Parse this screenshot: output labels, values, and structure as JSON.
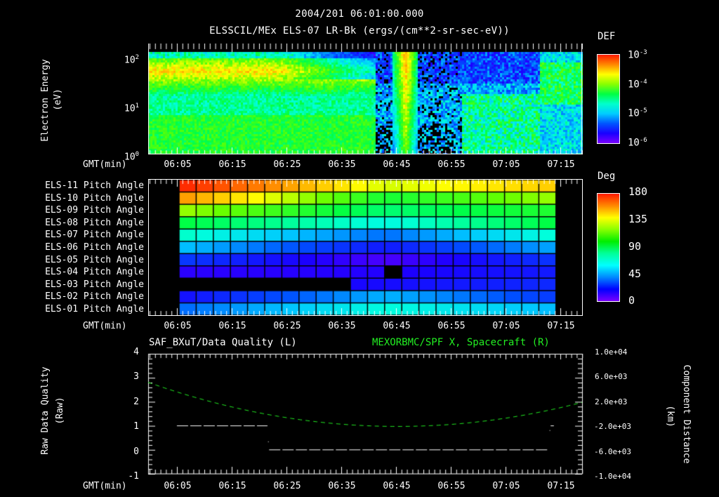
{
  "header": {
    "timestamp": "2004/201 06:01:00.000",
    "title": "ELSSCIL/MEx ELS-07 LR-Bk  (ergs/(cm**2-sr-sec-eV))"
  },
  "x_axis": {
    "label": "GMT(min)",
    "ticks": [
      "06:05",
      "06:15",
      "06:25",
      "06:35",
      "06:45",
      "06:55",
      "07:05",
      "07:15"
    ]
  },
  "panel1": {
    "ylabel": "Electron Energy",
    "yunits": "(eV)",
    "yticks": [
      {
        "base": "10",
        "exp": "2"
      },
      {
        "base": "10",
        "exp": "1"
      },
      {
        "base": "10",
        "exp": "0"
      }
    ],
    "colorbar": {
      "label": "DEF",
      "ticks": [
        {
          "base": "10",
          "exp": "-3"
        },
        {
          "base": "10",
          "exp": "-4"
        },
        {
          "base": "10",
          "exp": "-5"
        },
        {
          "base": "10",
          "exp": "-6"
        }
      ]
    }
  },
  "panel2": {
    "rows": [
      "ELS-11 Pitch Angle",
      "ELS-10 Pitch Angle",
      "ELS-09 Pitch Angle",
      "ELS-08 Pitch Angle",
      "ELS-07 Pitch Angle",
      "ELS-06 Pitch Angle",
      "ELS-05 Pitch Angle",
      "ELS-04 Pitch Angle",
      "ELS-03 Pitch Angle",
      "ELS-02 Pitch Angle",
      "ELS-01 Pitch Angle"
    ],
    "colorbar": {
      "label": "Deg",
      "ticks": [
        "180",
        "135",
        "90",
        "45",
        "0"
      ]
    }
  },
  "panel3": {
    "left_title": "SAF_BXuT/Data Quality (L)",
    "right_title": "MEXORBMC/SPF X, Spacecraft (R)",
    "ylabel_left": "Raw Data Quality",
    "yunits_left": "(Raw)",
    "yticks_left": [
      "4",
      "3",
      "2",
      "1",
      "0",
      "-1"
    ],
    "ylabel_right": "Component Distance",
    "yunits_right": "(km)",
    "yticks_right": [
      "1.0e+04",
      "6.0e+03",
      "2.0e+03",
      "-2.0e+03",
      "-6.0e+03",
      "-1.0e+04"
    ]
  },
  "colors": {
    "trace_green": "#22ee22",
    "trace_white": "#ffffff",
    "background": "#000000"
  },
  "chart_data": [
    {
      "type": "heatmap",
      "title": "ELSSCIL/MEx ELS-07 LR-Bk (ergs/(cm**2-sr-sec-eV))",
      "xlabel": "GMT(min)",
      "ylabel": "Electron Energy (eV)",
      "yscale": "log",
      "ylim": [
        1,
        150
      ],
      "x_ticks": [
        "06:05",
        "06:15",
        "06:25",
        "06:35",
        "06:45",
        "06:55",
        "07:05",
        "07:15"
      ],
      "colorbar": {
        "label": "DEF",
        "scale": "log",
        "range": [
          1e-06,
          0.001
        ]
      },
      "description": "Broad green/yellow flux 06:01-06:42 peaking ~50-80 eV; dropout to blue/black after 06:42 except narrow vertical yellow-red burst ~06:47-06:49; green recovery near 07:17-07:21"
    },
    {
      "type": "heatmap",
      "title": "ELS pitch angles",
      "xlabel": "GMT(min)",
      "categories": [
        "ELS-11",
        "ELS-10",
        "ELS-09",
        "ELS-08",
        "ELS-07",
        "ELS-06",
        "ELS-05",
        "ELS-04",
        "ELS-03",
        "ELS-02",
        "ELS-01"
      ],
      "colorbar": {
        "label": "Deg",
        "range": [
          0,
          180
        ]
      },
      "approx_start_values_deg": [
        175,
        150,
        120,
        100,
        80,
        60,
        35,
        20,
        null,
        25,
        45
      ],
      "approx_end_values_deg": [
        145,
        125,
        105,
        100,
        80,
        55,
        35,
        25,
        25,
        40,
        55
      ]
    },
    {
      "type": "line",
      "x_ticks": [
        "06:05",
        "06:15",
        "06:25",
        "06:35",
        "06:45",
        "06:55",
        "07:05",
        "07:15"
      ],
      "series": [
        {
          "name": "SAF_BXuT/Data Quality (L)",
          "axis": "left",
          "points": [
            [
              "06:05",
              1
            ],
            [
              "06:23",
              1
            ],
            [
              "06:23",
              0
            ],
            [
              "07:14",
              0
            ],
            [
              "07:15",
              1
            ]
          ]
        },
        {
          "name": "MEXORBMC/SPF X, Spacecraft (R)",
          "axis": "right",
          "units": "km",
          "points": [
            [
              "06:01",
              2400
            ],
            [
              "06:15",
              600
            ],
            [
              "06:25",
              -600
            ],
            [
              "06:35",
              -1600
            ],
            [
              "06:45",
              -2100
            ],
            [
              "06:55",
              -1900
            ],
            [
              "07:05",
              -900
            ],
            [
              "07:15",
              800
            ],
            [
              "07:21",
              2200
            ]
          ]
        }
      ],
      "ylim_left": [
        -1,
        4
      ],
      "ylim_right": [
        -10000,
        10000
      ]
    }
  ]
}
